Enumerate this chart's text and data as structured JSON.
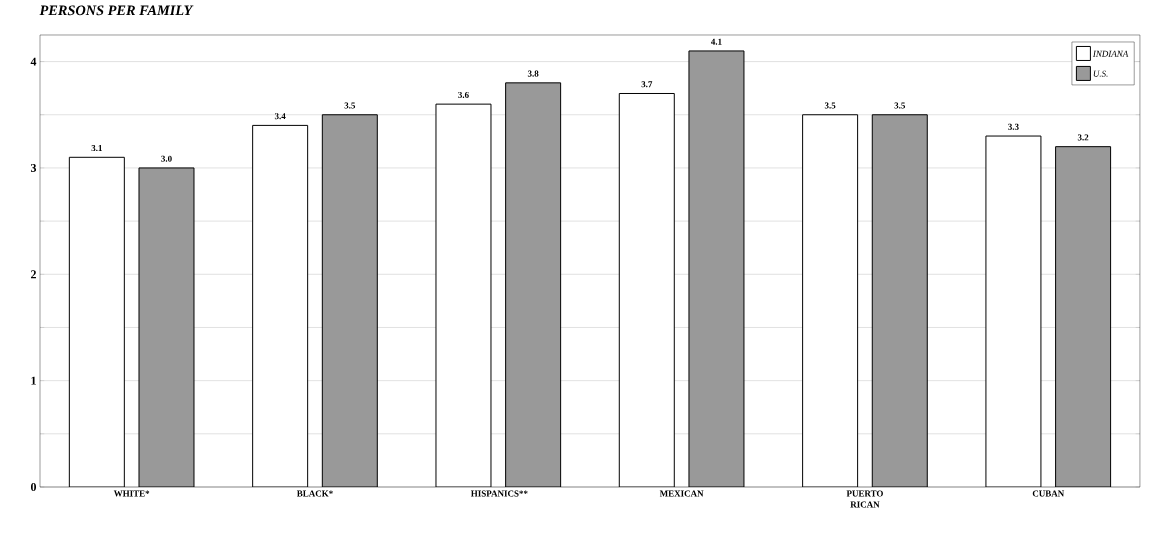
{
  "chart_data": {
    "type": "bar",
    "title": "PERSONS PER FAMILY",
    "categories": [
      "WHITE*",
      "BLACK*",
      "HISPANICS**",
      "MEXICAN",
      "PUERTO RICAN",
      "CUBAN"
    ],
    "series": [
      {
        "name": "INDIANA",
        "color": "#ffffff",
        "values": [
          3.1,
          3.4,
          3.6,
          3.7,
          3.5,
          3.3
        ],
        "value_labels": [
          "3.1",
          "3.4",
          "3.6",
          "3.7",
          "3.5",
          "3.3"
        ]
      },
      {
        "name": "U.S.",
        "color": "#999999",
        "values": [
          3.0,
          3.5,
          3.8,
          4.1,
          3.5,
          3.2
        ],
        "value_labels": [
          "3.0",
          "3.5",
          "3.8",
          "4.1",
          "3.5",
          "3.2"
        ]
      }
    ],
    "ylim": [
      0,
      4.25
    ],
    "yticks": [
      0,
      {
        "value": 0.5,
        "label": null
      },
      1,
      {
        "value": 1.5,
        "label": null
      },
      2,
      {
        "value": 2.5,
        "label": null
      },
      3,
      {
        "value": 3.5,
        "label": null
      },
      4
    ],
    "grid": "y",
    "legend": "top right",
    "data_labels": true
  }
}
